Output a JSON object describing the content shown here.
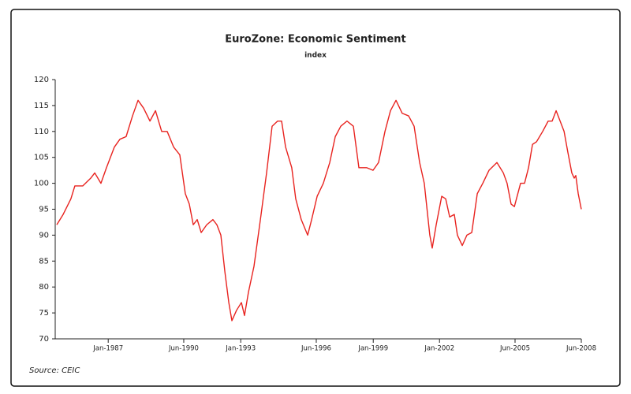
{
  "chart_data": {
    "type": "line",
    "title": "EuroZone: Economic Sentiment",
    "subtitle": "index",
    "source": "Source: CEIC",
    "color": "#e8231f",
    "grid": false,
    "xlim": [
      1984.6,
      2008.42
    ],
    "ylim": [
      70,
      120
    ],
    "yticks": [
      70,
      75,
      80,
      85,
      90,
      95,
      100,
      105,
      110,
      115,
      120
    ],
    "xticks": [
      {
        "value": 1987.0,
        "label": "Jan-1987"
      },
      {
        "value": 1990.42,
        "label": "Jun-1990"
      },
      {
        "value": 1993.0,
        "label": "Jan-1993"
      },
      {
        "value": 1996.42,
        "label": "Jun-1996"
      },
      {
        "value": 1999.0,
        "label": "Jan-1999"
      },
      {
        "value": 2002.0,
        "label": "Jan-2002"
      },
      {
        "value": 2005.42,
        "label": "Jun-2005"
      },
      {
        "value": 2008.42,
        "label": "Jun-2008"
      }
    ],
    "x": [
      1984.67,
      1984.96,
      1985.31,
      1985.49,
      1985.85,
      1986.21,
      1986.39,
      1986.67,
      1986.92,
      1987.28,
      1987.53,
      1987.81,
      1988.1,
      1988.35,
      1988.6,
      1988.89,
      1989.14,
      1989.42,
      1989.67,
      1989.96,
      1990.24,
      1990.49,
      1990.67,
      1990.85,
      1991.03,
      1991.21,
      1991.46,
      1991.74,
      1991.92,
      1992.1,
      1992.28,
      1992.46,
      1992.6,
      1992.81,
      1993.03,
      1993.17,
      1993.35,
      1993.6,
      1993.89,
      1994.17,
      1994.42,
      1994.67,
      1994.85,
      1995.03,
      1995.31,
      1995.49,
      1995.74,
      1996.03,
      1996.21,
      1996.46,
      1996.74,
      1997.03,
      1997.28,
      1997.53,
      1997.81,
      1998.1,
      1998.35,
      1998.71,
      1998.99,
      1999.24,
      1999.53,
      1999.78,
      2000.03,
      2000.31,
      2000.6,
      2000.85,
      2001.1,
      2001.31,
      2001.56,
      2001.67,
      2001.85,
      2002.1,
      2002.28,
      2002.46,
      2002.67,
      2002.81,
      2003.03,
      2003.24,
      2003.46,
      2003.71,
      2003.96,
      2004.24,
      2004.6,
      2004.89,
      2005.06,
      2005.24,
      2005.39,
      2005.67,
      2005.85,
      2006.03,
      2006.21,
      2006.39,
      2006.67,
      2006.92,
      2007.1,
      2007.28,
      2007.46,
      2007.64,
      2007.81,
      2007.99,
      2008.1,
      2008.17,
      2008.28,
      2008.42
    ],
    "values": [
      92,
      94,
      97,
      99.5,
      99.5,
      101,
      102,
      100,
      103,
      107,
      108.5,
      109,
      113,
      116,
      114.5,
      112,
      114,
      110,
      110,
      107,
      105.5,
      98,
      96,
      92,
      93,
      90.5,
      92,
      93,
      92,
      90,
      83,
      77,
      73.5,
      75.5,
      77,
      74.5,
      79,
      84,
      93,
      102,
      111,
      112,
      112,
      107,
      103,
      97,
      93,
      90,
      93,
      97.5,
      100,
      104,
      109,
      111,
      112,
      111,
      103,
      103,
      102.5,
      104,
      110,
      114,
      116,
      113.5,
      113,
      111,
      104,
      100,
      90,
      87.5,
      92,
      97.5,
      97,
      93.5,
      94,
      90,
      88,
      90,
      90.5,
      98,
      100,
      102.5,
      104,
      102,
      100,
      96,
      95.5,
      100,
      100,
      103,
      107.5,
      108,
      110,
      112,
      112,
      114,
      112,
      110,
      106,
      102,
      101,
      101.5,
      98,
      95
    ]
  }
}
